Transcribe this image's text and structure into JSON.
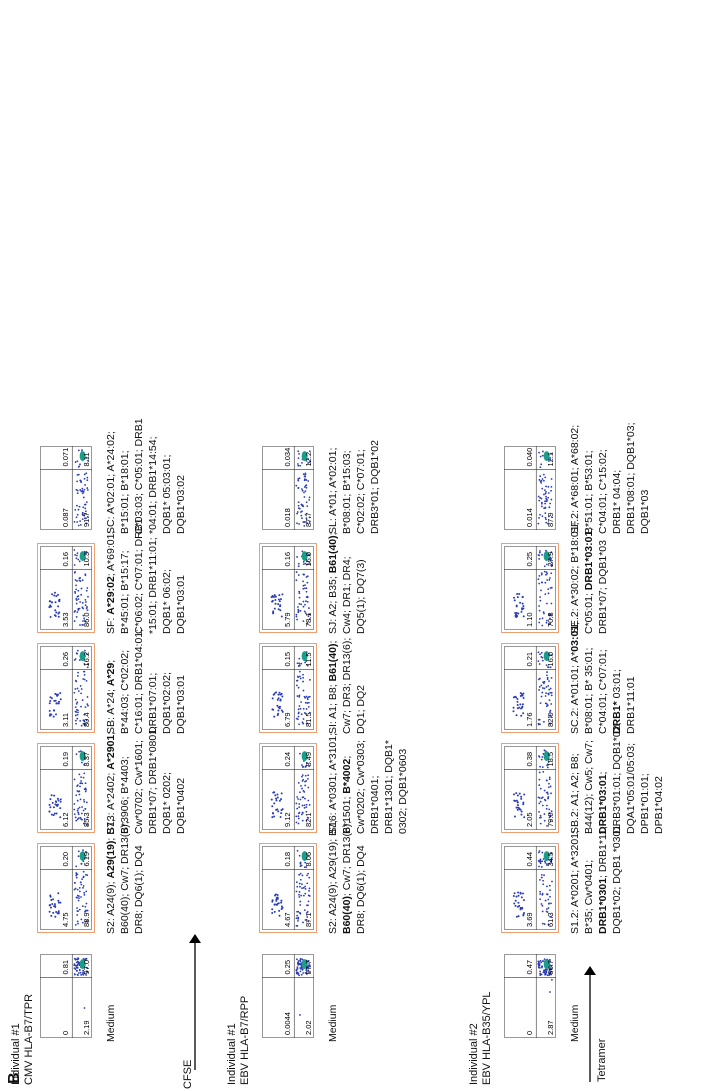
{
  "figure_label": "B",
  "axes": {
    "x": "CFSE",
    "y": "Tetramer"
  },
  "columns": [
    {
      "line1": "Individual #1",
      "line2": "CMV HLA-B7/TPR"
    },
    {
      "line1": "Individual #1",
      "line2": "EBV HLA-B7/RPP"
    },
    {
      "line1": "Individual #2",
      "line2": "EBV HLA-B35/YPL"
    }
  ],
  "rows": [
    {
      "desc": [
        "Medium",
        "Medium",
        "Medium"
      ],
      "bold": [
        [],
        [],
        []
      ],
      "q": [
        [
          "0",
          "0.81",
          "2.19",
          "97.0"
        ],
        [
          "0.0044",
          "0.25",
          "2.02",
          "97.7"
        ],
        [
          "0",
          "0.47",
          "2.87",
          "96.7"
        ]
      ],
      "highlight": [
        false,
        false,
        false
      ]
    },
    {
      "desc": [
        "S2: A24(9); A29(19); B7; B60(40); Cw7; DR13(6); DR8; DQ6(1); DQ4",
        "S2: A24(9); A29(19); B7; B60(40); Cw7; DR13(6); DR8; DQ6(1); DQ4",
        "S1.2: A*0201; A*3201; B*35; Cw*0401; DRB1*0301; DRB1*11; DQB1*02; DQB1 *0301"
      ],
      "bold": [
        [
          "A29(19)"
        ],
        [
          "B60(40)"
        ],
        [
          "DRB1*0301"
        ]
      ],
      "q": [
        [
          "4.75",
          "0.20",
          "88.9",
          "6.19"
        ],
        [
          "4.67",
          "0.18",
          "87.1",
          "8.06"
        ],
        [
          "3.69",
          "0.44",
          "61.3",
          "34.5"
        ]
      ],
      "highlight": [
        true,
        true,
        true
      ]
    },
    {
      "desc": [
        "S13: A*2402; A*2901; B*3906; B*4403; Cw*0702; Cw*1601; DRB1*07; DRB1*0801; DQB1* 0202; DQB1*0402",
        "S16: A*0301; A*3101; B*1501; B*4002; Cw*0202; Cw*0303; DRB1*0401; DRB1*1301; DQB1* 0302; DQB1*0603",
        "SB.2: A1; A2; B8; B44(12); Cw5; Cw7; DRB1*03:01; DRB3*01:01; DQB1*02; DQA1*05:01/05:03; DPB1*01:01; DPB1*04:02"
      ],
      "bold": [
        [
          "A*2901"
        ],
        [
          "B*4002"
        ],
        [
          "DRB1*03:01"
        ]
      ],
      "q": [
        [
          "6.12",
          "0.19",
          "85.3",
          "8.37"
        ],
        [
          "9.12",
          "0.24",
          "82.1",
          "8.49"
        ],
        [
          "2.05",
          "0.38",
          "79.0",
          "18.5"
        ]
      ],
      "highlight": [
        true,
        true,
        true
      ]
    },
    {
      "desc": [
        "SB: A*24; A*29; B*44:03; C*02:02; C*16:01; DRB1*04:01; DRB1*07:01; DQB1*02:02; DQB1*03:01",
        "SI: A1; B8; B61(40); Cw7; DR3; DR13(6); DQ1; DQ2",
        "SC.2: A*01:01; A*03:01; B*08:01; B* 35:01; C*04:01; C*07:01; DRB1* 03:01; DRB1*11:01"
      ],
      "bold": [
        [
          "A*29"
        ],
        [
          "B61(40)"
        ],
        [
          "DRB1*",
          "03:01"
        ]
      ],
      "q": [
        [
          "3.11",
          "0.26",
          "80.4",
          "16.2"
        ],
        [
          "6.79",
          "0.15",
          "81.5",
          "11.5"
        ],
        [
          "1.76",
          "0.21",
          "82.0",
          "16.0"
        ]
      ],
      "highlight": [
        true,
        true,
        true
      ]
    },
    {
      "desc": [
        "SF: A*29:02; A*69:01; B*45:01; B*15:17; C*06:02; C*07:01; DRB1 *15:01; DRB1*11:01; DQB1* 06:02; DQB1*03:01",
        "SJ: A2; B35; B61(40); Cw4; DR1; DR4; DQ5(1); DQ7(3)",
        "SE.2: A*30:02; B*18:01; C*05:01; DRB1*03:01; DRB1*07; DQB1*03"
      ],
      "bold": [
        [
          "A*29:02"
        ],
        [
          "B61(40)"
        ],
        [
          "DRB1*03:01"
        ]
      ],
      "q": [
        [
          "3.53",
          "0.16",
          "86.0",
          "10.3"
        ],
        [
          "5.79",
          "0.16",
          "78.1",
          "16.0"
        ],
        [
          "1.10",
          "0.25",
          "70.8",
          "27.9"
        ]
      ],
      "highlight": [
        true,
        true,
        true
      ]
    },
    {
      "desc": [
        "SC: A*02:01; A*24:02; B*15:01; B*18:01; C*03:03; C*05:01; DRB1 *04:01; DRB1*14:54; DQB1* 05:03:01; DQB1*03:02",
        "SL: A*01; A*02:01; B*08:01; B*15:03; C*02:02; C*07:01; DRB3*01; DQB1*02",
        "SF.2: A*68:01; A*68:02; B*51:01; B*53:01; C*04:01; C*15:02; DRB1* 04:04; DRB1*08:01; DQB1*03; DQB1*03"
      ],
      "bold": [
        [],
        [],
        []
      ],
      "q": [
        [
          "0.087",
          "0.071",
          "91.7",
          "8.11"
        ],
        [
          "0.018",
          "0.034",
          "87.7",
          "12.2"
        ],
        [
          "0.014",
          "0.040",
          "87.9",
          "12.1"
        ]
      ],
      "highlight": [
        false,
        false,
        false
      ]
    }
  ],
  "colors": {
    "highlight": "#f0a070",
    "gate": "#333333",
    "dots": "#2a3cb8",
    "hot": "#1a9e8a"
  }
}
